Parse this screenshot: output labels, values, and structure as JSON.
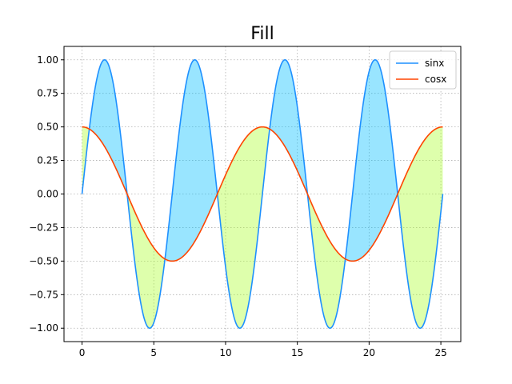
{
  "chart_data": {
    "type": "line",
    "title": "Fill",
    "xlabel": "",
    "ylabel": "",
    "xlim": [
      -1.257,
      26.389
    ],
    "ylim": [
      -1.1,
      1.1
    ],
    "x_ticks": [
      0,
      5,
      10,
      15,
      20,
      25
    ],
    "x_tick_labels": [
      "0",
      "5",
      "10",
      "15",
      "20",
      "25"
    ],
    "y_ticks": [
      -1.0,
      -0.75,
      -0.5,
      -0.25,
      0.0,
      0.25,
      0.5,
      0.75,
      1.0
    ],
    "y_tick_labels": [
      "−1.00",
      "−0.75",
      "−0.50",
      "−0.25",
      "0.00",
      "0.25",
      "0.50",
      "0.75",
      "1.00"
    ],
    "grid": true,
    "legend_position": "top-right",
    "x_range": [
      0,
      25.133
    ],
    "series": [
      {
        "name": "sinx",
        "function": "sin",
        "amplitude": 1.0,
        "color": "#1e90ff"
      },
      {
        "name": "cosx",
        "function": "cos",
        "amplitude": 0.5,
        "frequency": 0.5,
        "color": "#ff4500"
      }
    ],
    "fill": {
      "sin_above_cos_color": "#00bfff",
      "sin_above_cos_alpha": 0.4,
      "sin_below_cos_color": "#adff2f",
      "sin_below_cos_alpha": 0.4
    }
  }
}
